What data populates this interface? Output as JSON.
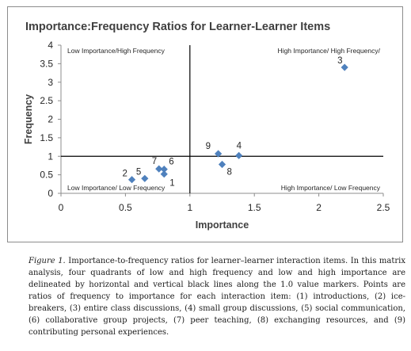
{
  "chart_data": {
    "type": "scatter",
    "title": "Importance:Frequency Ratios for Learner-Learner Items",
    "xlabel": "Importance",
    "ylabel": "Frequency",
    "xlim": [
      0,
      2.5
    ],
    "ylim": [
      0,
      4
    ],
    "x_ticks": [
      "0",
      "0.5",
      "1",
      "1.5",
      "2",
      "2.5"
    ],
    "y_ticks": [
      "0",
      "0.5",
      "1",
      "1.5",
      "2",
      "2.5",
      "3",
      "3.5",
      "4"
    ],
    "grid": false,
    "marker_color": "#4f81bd",
    "reference_lines": {
      "x": 1.0,
      "y": 1.0,
      "color": "#000000"
    },
    "quadrant_labels": {
      "top_left": "Low Importance/High Frequency",
      "top_right": "High Importance/ High Frequency/",
      "bottom_left": "Low Importance/ Low Frequency",
      "bottom_right": "High Importance/ Low Frequency"
    },
    "points": [
      {
        "label": "1",
        "x": 0.8,
        "y": 0.52
      },
      {
        "label": "2",
        "x": 0.55,
        "y": 0.37
      },
      {
        "label": "3",
        "x": 2.2,
        "y": 3.4
      },
      {
        "label": "4",
        "x": 1.38,
        "y": 1.02
      },
      {
        "label": "5",
        "x": 0.65,
        "y": 0.4
      },
      {
        "label": "6",
        "x": 0.8,
        "y": 0.65
      },
      {
        "label": "7",
        "x": 0.76,
        "y": 0.66
      },
      {
        "label": "8",
        "x": 1.25,
        "y": 0.78
      },
      {
        "label": "9",
        "x": 1.22,
        "y": 1.07
      }
    ]
  },
  "caption": {
    "figure_label": "Figure 1.",
    "text": " Importance-to-frequency ratios for learner–learner interaction items. In this matrix analysis, four quadrants of low and high frequency and low and high importance are delineated by horizontal and vertical black lines along the 1.0 value markers. Points are ratios of frequency to importance for each interaction item: (1) introductions, (2) ice-breakers, (3) entire class discussions, (4) small group discussions, (5) social communication, (6) collaborative group projects, (7) peer teaching, (8) exchanging resources, and (9) contributing personal experiences."
  }
}
